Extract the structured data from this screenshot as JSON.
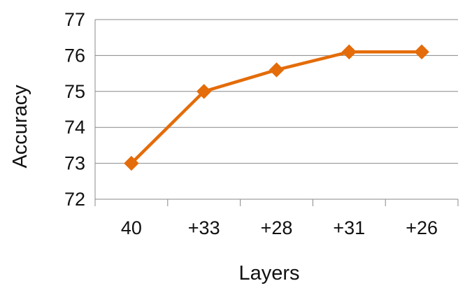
{
  "chart_data": {
    "type": "line",
    "title": "",
    "xlabel": "Layers",
    "ylabel": "Accuracy",
    "categories": [
      "40",
      "+33",
      "+28",
      "+31",
      "+26"
    ],
    "series": [
      {
        "values": [
          73.0,
          75.0,
          75.6,
          76.1,
          76.1
        ],
        "color": "#E46C0A",
        "marker": "diamond"
      }
    ],
    "ylim": [
      72,
      77
    ],
    "yticks": [
      "72",
      "73",
      "74",
      "75",
      "76",
      "77"
    ],
    "grid": "horizontal",
    "legend": "none"
  },
  "colors": {
    "line": "#E46C0A",
    "grid": "#888888",
    "axis": "#888888",
    "text": "#111111"
  }
}
